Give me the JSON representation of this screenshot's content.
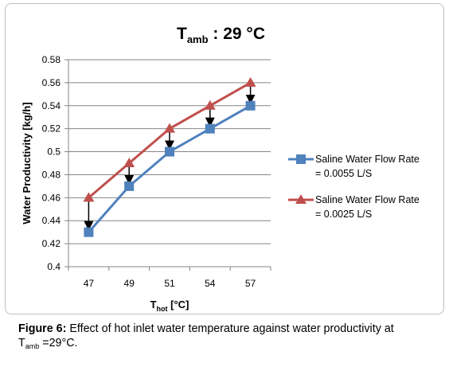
{
  "chart_data": {
    "type": "line",
    "title": {
      "main": "T",
      "sub": "amb",
      "rest": " : 29 °C"
    },
    "xlabel": {
      "main": "T",
      "sub": "hot",
      "rest": " [°C]"
    },
    "ylabel": "Water Productivity [kg/h]",
    "categories": [
      "47",
      "49",
      "51",
      "54",
      "57"
    ],
    "ylim": [
      0.4,
      0.58
    ],
    "yticks": [
      "0.4",
      "0.42",
      "0.44",
      "0.46",
      "0.48",
      "0.5",
      "0.52",
      "0.54",
      "0.56",
      "0.58"
    ],
    "grid": true,
    "legend_position": "right",
    "series": [
      {
        "name_line1": "Saline Water Flow Rate",
        "name_line2": "= 0.0055 L/S",
        "marker": "square",
        "color": "#4f81bd",
        "values": [
          0.43,
          0.47,
          0.5,
          0.52,
          0.54
        ]
      },
      {
        "name_line1": "Saline Water Flow Rate",
        "name_line2": "= 0.0025 L/S",
        "marker": "triangle",
        "color": "#c0504d",
        "values": [
          0.46,
          0.49,
          0.52,
          0.54,
          0.56
        ]
      }
    ],
    "annotations": "vertical black arrows from upper series down to lower series at each x"
  },
  "caption": {
    "label": "Figure 6:",
    "text": " Effect of hot inlet water temperature against water productivity at",
    "line2_main": "T",
    "line2_sub": "amb",
    "line2_rest": " =29°C."
  }
}
